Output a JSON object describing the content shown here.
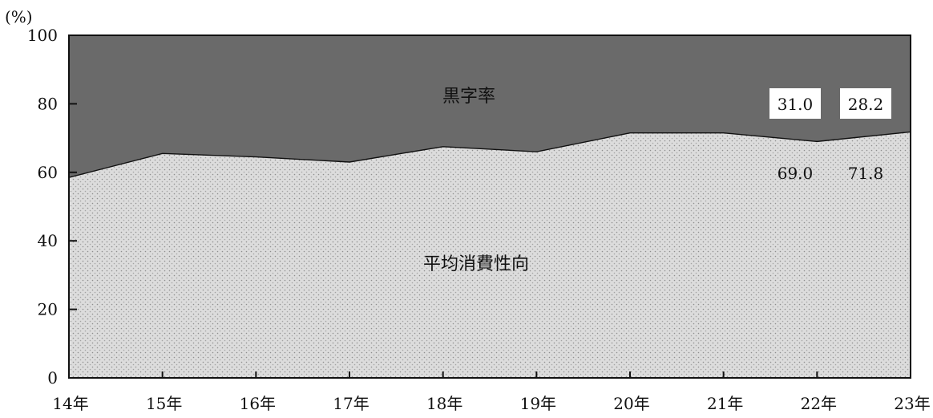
{
  "chart_data": {
    "type": "area",
    "unit": "(%)",
    "categories": [
      "14年",
      "15年",
      "16年",
      "17年",
      "18年",
      "19年",
      "20年",
      "21年",
      "22年",
      "23年"
    ],
    "ylim": [
      0,
      100
    ],
    "yticks": [
      "0",
      "20",
      "40",
      "60",
      "80",
      "100"
    ],
    "stacked": true,
    "series": [
      {
        "name": "平均消費性向",
        "values": [
          58.5,
          65.5,
          64.5,
          63.0,
          67.5,
          66.0,
          71.5,
          71.5,
          69.0,
          71.8
        ]
      },
      {
        "name": "黒字率",
        "values": [
          41.5,
          34.5,
          35.5,
          37.0,
          32.5,
          34.0,
          28.5,
          28.5,
          31.0,
          28.2
        ]
      }
    ],
    "value_labels": {
      "consumption": [
        "69.0",
        "71.8"
      ],
      "surplus": [
        "31.0",
        "28.2"
      ]
    },
    "colors": {
      "consumption_fill": "#d9d9d9",
      "surplus_fill": "#6a6a6a",
      "axis": "#111111"
    },
    "grid": false,
    "legend": "none"
  }
}
